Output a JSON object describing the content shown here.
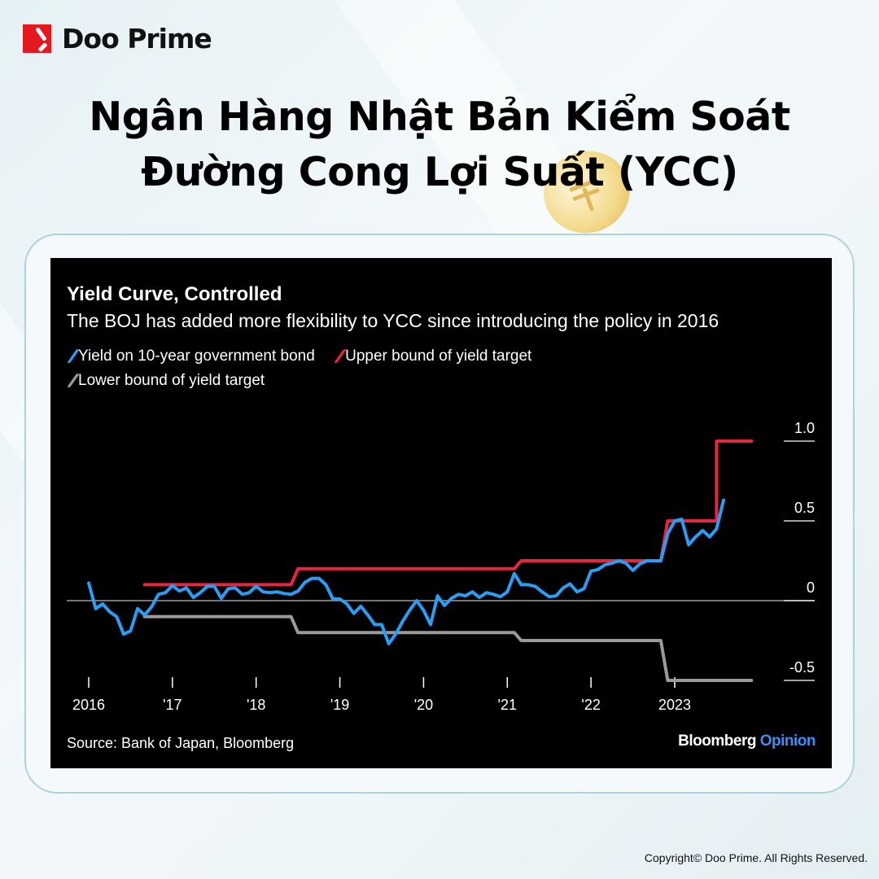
{
  "brand": {
    "logo_text": "Doo Prime",
    "accent": "#e3191f"
  },
  "headline": {
    "line1": "Ngân Hàng Nhật Bản Kiểm Soát",
    "line2": "Đường Cong Lợi Suất (YCC)"
  },
  "footer": {
    "copyright": "Copyright© Doo Prime. All Rights Reserved."
  },
  "chart_data": {
    "type": "line",
    "title": "Yield Curve, Controlled",
    "subtitle": "The BOJ has added more flexibility to YCC since introducing the policy in 2016",
    "source": "Source: Bank of Japan, Bloomberg",
    "credit": {
      "main": "Bloomberg",
      "accent": "Opinion"
    },
    "legend_placement": "top-left",
    "xlabel": "",
    "ylabel": "",
    "x_ticks": [
      "2016",
      "'17",
      "'18",
      "'19",
      "'20",
      "'21",
      "'22",
      "2023"
    ],
    "y_ticks": [
      "1.0",
      "0.5",
      "0",
      "-0.5"
    ],
    "ylim": [
      -0.6,
      1.1
    ],
    "grid": false,
    "series": [
      {
        "name": "Yield on 10-year government bond",
        "color": "#2a9df4",
        "points": [
          [
            "2016-01",
            0.11
          ],
          [
            "2016-02",
            -0.05
          ],
          [
            "2016-03",
            -0.02
          ],
          [
            "2016-04",
            -0.07
          ],
          [
            "2016-05",
            -0.1
          ],
          [
            "2016-06",
            -0.21
          ],
          [
            "2016-07",
            -0.19
          ],
          [
            "2016-08",
            -0.05
          ],
          [
            "2016-09",
            -0.09
          ],
          [
            "2016-10",
            -0.04
          ],
          [
            "2016-11",
            0.04
          ],
          [
            "2016-12",
            0.05
          ],
          [
            "2017-01",
            0.095
          ],
          [
            "2017-02",
            0.06
          ],
          [
            "2017-03",
            0.08
          ],
          [
            "2017-04",
            0.02
          ],
          [
            "2017-05",
            0.05
          ],
          [
            "2017-06",
            0.09
          ],
          [
            "2017-07",
            0.09
          ],
          [
            "2017-08",
            0.015
          ],
          [
            "2017-09",
            0.075
          ],
          [
            "2017-10",
            0.08
          ],
          [
            "2017-11",
            0.04
          ],
          [
            "2017-12",
            0.05
          ],
          [
            "2018-01",
            0.09
          ],
          [
            "2018-02",
            0.055
          ],
          [
            "2018-03",
            0.05
          ],
          [
            "2018-04",
            0.055
          ],
          [
            "2018-05",
            0.045
          ],
          [
            "2018-06",
            0.04
          ],
          [
            "2018-07",
            0.06
          ],
          [
            "2018-08",
            0.115
          ],
          [
            "2018-09",
            0.14
          ],
          [
            "2018-10",
            0.14
          ],
          [
            "2018-11",
            0.1
          ],
          [
            "2018-12",
            0.01
          ],
          [
            "2019-01",
            0.01
          ],
          [
            "2019-02",
            -0.02
          ],
          [
            "2019-03",
            -0.08
          ],
          [
            "2019-04",
            -0.035
          ],
          [
            "2019-05",
            -0.09
          ],
          [
            "2019-06",
            -0.15
          ],
          [
            "2019-07",
            -0.15
          ],
          [
            "2019-08",
            -0.27
          ],
          [
            "2019-09",
            -0.21
          ],
          [
            "2019-10",
            -0.13
          ],
          [
            "2019-11",
            -0.06
          ],
          [
            "2019-12",
            0.0
          ],
          [
            "2020-01",
            -0.06
          ],
          [
            "2020-02",
            -0.15
          ],
          [
            "2020-03",
            0.03
          ],
          [
            "2020-04",
            -0.03
          ],
          [
            "2020-05",
            0.015
          ],
          [
            "2020-06",
            0.04
          ],
          [
            "2020-07",
            0.03
          ],
          [
            "2020-08",
            0.055
          ],
          [
            "2020-09",
            0.02
          ],
          [
            "2020-10",
            0.05
          ],
          [
            "2020-11",
            0.04
          ],
          [
            "2020-12",
            0.025
          ],
          [
            "2021-01",
            0.055
          ],
          [
            "2021-02",
            0.17
          ],
          [
            "2021-03",
            0.1
          ],
          [
            "2021-04",
            0.1
          ],
          [
            "2021-05",
            0.09
          ],
          [
            "2021-06",
            0.055
          ],
          [
            "2021-07",
            0.025
          ],
          [
            "2021-08",
            0.03
          ],
          [
            "2021-09",
            0.08
          ],
          [
            "2021-10",
            0.105
          ],
          [
            "2021-11",
            0.055
          ],
          [
            "2021-12",
            0.075
          ],
          [
            "2022-01",
            0.185
          ],
          [
            "2022-02",
            0.195
          ],
          [
            "2022-03",
            0.225
          ],
          [
            "2022-04",
            0.235
          ],
          [
            "2022-05",
            0.25
          ],
          [
            "2022-06",
            0.235
          ],
          [
            "2022-07",
            0.19
          ],
          [
            "2022-08",
            0.23
          ],
          [
            "2022-09",
            0.25
          ],
          [
            "2022-10",
            0.25
          ],
          [
            "2022-11",
            0.25
          ],
          [
            "2022-12",
            0.42
          ],
          [
            "2023-01",
            0.5
          ],
          [
            "2023-02",
            0.51
          ],
          [
            "2023-03",
            0.35
          ],
          [
            "2023-04",
            0.4
          ],
          [
            "2023-05",
            0.44
          ],
          [
            "2023-06",
            0.4
          ],
          [
            "2023-07",
            0.45
          ],
          [
            "2023-08",
            0.63
          ]
        ]
      },
      {
        "name": "Upper bound of yield target",
        "color": "#e8243f",
        "points": [
          [
            "2016-09",
            0.1
          ],
          [
            "2018-06",
            0.1
          ],
          [
            "2018-07",
            0.2
          ],
          [
            "2021-02",
            0.2
          ],
          [
            "2021-03",
            0.25
          ],
          [
            "2022-11",
            0.25
          ],
          [
            "2022-12",
            0.5
          ],
          [
            "2023-07",
            0.5
          ],
          [
            "2023-07",
            1.0
          ],
          [
            "2023-12",
            1.0
          ]
        ]
      },
      {
        "name": "Lower bound of yield target",
        "color": "#9a9a9a",
        "points": [
          [
            "2016-09",
            -0.1
          ],
          [
            "2018-06",
            -0.1
          ],
          [
            "2018-07",
            -0.2
          ],
          [
            "2021-02",
            -0.2
          ],
          [
            "2021-03",
            -0.25
          ],
          [
            "2022-11",
            -0.25
          ],
          [
            "2022-12",
            -0.5
          ],
          [
            "2023-12",
            -0.5
          ]
        ]
      }
    ]
  }
}
